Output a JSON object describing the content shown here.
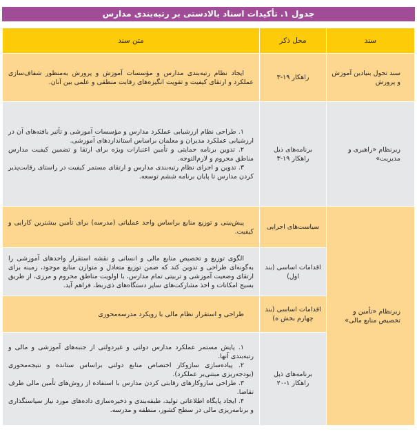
{
  "title": "جدول ۱. تأکیدات اسناد بالادستی بر رتبه‌بندی مدارس",
  "headers": {
    "document": "سند",
    "location": "محل ذکر",
    "text": "متن سند"
  },
  "rows": [
    {
      "document": "سند تحول بنیادین آموزش و پرورش",
      "location": "راهکار ۱۹-۳",
      "text": [
        "ایجاد نظام رتبه‌بندی مدارس و مؤسسات آموزش و پرورش به‌منظور شفاف‌سازی عملکرد و ارتقای کیفیت و تقویت انگیزه‌های رقابت منطقی و علمی بین آنان."
      ]
    },
    {
      "document": "زیرنظام «راهبری و مدیریت»",
      "location": "برنامه‌های ذیل راهکار ۱۹-۳",
      "text": [
        "۱. طراحی نظام ارزشیابی عملکرد مدارس و مؤسسات آموزشی و تأثیر یافته‌های آن در ارزشیابی عملکرد مدیران و معلمان براساس استانداردهای آموزشی.",
        "۲. تدوین برنامه حمایتی و تأمین اعتبارات ویژه برای ارتقا و تضمین کیفیت مدارس مناطق محروم و لازم‌التوجه.",
        "۳. تدوین و اجرای نظام رتبه‌بندی مدارس و ارتقای مستمر کیفیت در راستای رقابت‌پذیر کردن مدارس تا پایان برنامه ششم توسعه."
      ]
    },
    {
      "document": "زیرنظام «تأمین و تخصیص منابع مالی»",
      "location": "سیاست‌های اجرایی",
      "text": [
        "پیش‌بینی و توزیع منابع براساس واحد عملیاتی (مدرسه) برای تأمین بیشترین کارایی و کیفیت."
      ]
    },
    {
      "location": "اقدامات اساسی (بند اول)",
      "text": [
        "الگوی توزیع و تخصیص منابع مالی و انسانی و نقشه استقرار واحدهای آموزشی را به‌گونه‌ای طراحی و تدوین کند که ضمن توزیع متعادل و متوازن منابع موجود، زمینه برای ارتقای وضعیت آموزشی و تربیتی تمام مدارس، با اولویت مناطق محروم و مرزی، از طریق بسیج امکانات و اخذ مشارکت‌های سایر دستگاه‌های ذی‌ربط، فراهم آید."
      ]
    },
    {
      "location": "اقدامات اساسی (بند چهارم بخش ه)",
      "text": [
        "طراحی و استقرار نظام مالی با رویکرد مدرسه‌محوری"
      ]
    },
    {
      "location": "برنامه‌های ذیل راهکار ۱-۲۰",
      "text": [
        "۱. پایش مستمر عملکرد مدارس دولتی و غیردولتی از جنبه‌های آموزشی و مالی و رتبه‌بندی آنها.",
        "۲. پیاده‌سازی سازوکار اختصاص منابع دولتی براساس ستانده و نتیجه‌محوری (بودجه‌ریزی مبتنی‌بر عملکرد).",
        "۳. طراحی سازوکارهای رقابتی کردن مدارس با استفاده از روش‌های تأمین مالی طرف تقاضا.",
        "۴. ایجاد پایگاه اطلاعاتی تولید، طبقه‌بندی و ذخیره‌سازی داده‌های مورد نیاز سیاستگذاری و برنامه‌ریزی مالی در سطح کشور، منطقه و مدرسه."
      ]
    }
  ],
  "colors": {
    "title_bg": "#a04c97",
    "header_bg": "#fecb08",
    "peach_row": "#fdd68f",
    "grey_row": "#e6e7e8"
  }
}
